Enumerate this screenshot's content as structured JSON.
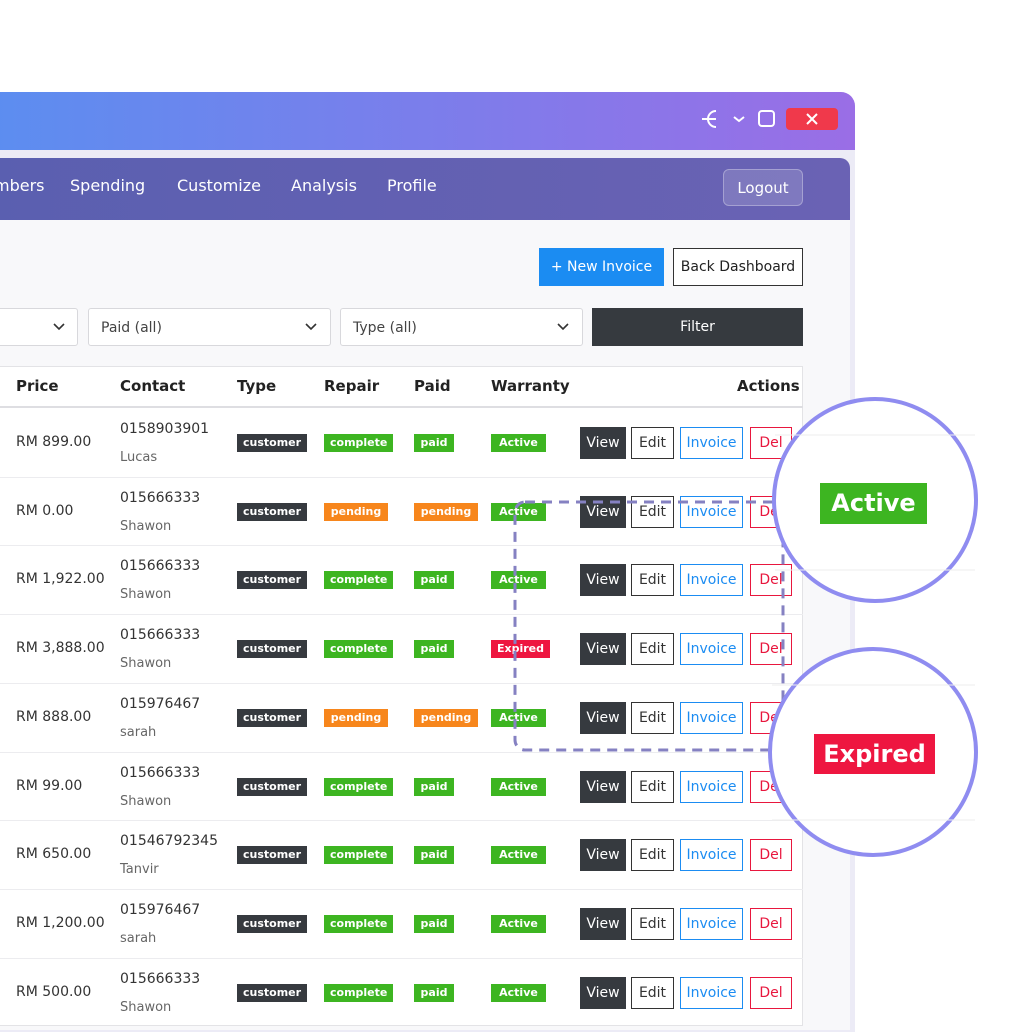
{
  "nav": {
    "items": [
      "mbers",
      "Spending",
      "Customize",
      "Analysis",
      "Profile"
    ],
    "logout": "Logout"
  },
  "toolbar": {
    "new_invoice": "+ New Invoice",
    "back": "Back Dashboard"
  },
  "filters": {
    "selects": [
      "Paid (all)",
      "Type (all)"
    ],
    "button": "Filter"
  },
  "table": {
    "headers": [
      "Price",
      "Contact",
      "Type",
      "Repair",
      "Paid",
      "Warranty",
      "Actions"
    ],
    "actions": [
      "View",
      "Edit",
      "Invoice",
      "Del"
    ],
    "rows": [
      [
        "RM 899.00",
        "0158903901",
        "Lucas",
        "customer",
        "complete",
        "paid",
        "Active"
      ],
      [
        "RM 0.00",
        "015666333",
        "Shawon",
        "customer",
        "pending",
        "pending",
        "Active"
      ],
      [
        "RM 1,922.00",
        "015666333",
        "Shawon",
        "customer",
        "complete",
        "paid",
        "Active"
      ],
      [
        "RM 3,888.00",
        "015666333",
        "Shawon",
        "customer",
        "complete",
        "paid",
        "Expired"
      ],
      [
        "RM 888.00",
        "015976467",
        "sarah",
        "customer",
        "pending",
        "pending",
        "Active"
      ],
      [
        "RM 99.00",
        "015666333",
        "Shawon",
        "customer",
        "complete",
        "paid",
        "Active"
      ],
      [
        "RM 650.00",
        "01546792345",
        "Tanvir",
        "customer",
        "complete",
        "paid",
        "Active"
      ],
      [
        "RM 1,200.00",
        "015976467",
        "sarah",
        "customer",
        "complete",
        "paid",
        "Active"
      ],
      [
        "RM 500.00",
        "015666333",
        "Shawon",
        "customer",
        "complete",
        "paid",
        "Active"
      ]
    ]
  },
  "callouts": [
    "Active",
    "Expired"
  ]
}
